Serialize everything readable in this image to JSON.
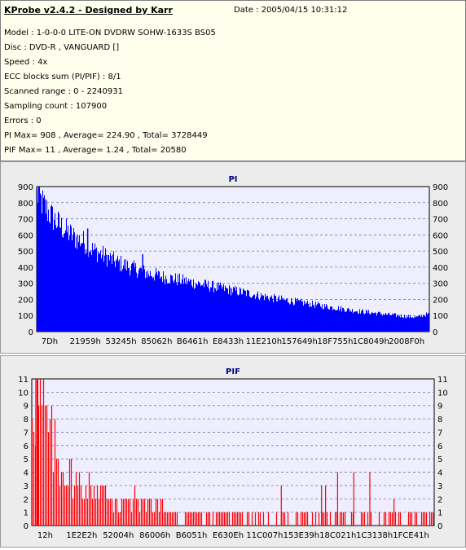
{
  "header": {
    "title": "KProbe v2.4.2 - Designed by Karr",
    "date": "Date : 2005/04/15 10:31:12",
    "lines": [
      "Model : 1-0-0-0 LITE-ON DVDRW SOHW-1633S BS05",
      "Disc : DVD-R , VANGUARD []",
      "Speed : 4x",
      "ECC blocks sum (PI/PIF) : 8/1",
      "Scanned range : 0 - 2240931",
      "Sampling count : 107900",
      "Errors : 0",
      "PI Max= 908 , Average= 224.90 , Total= 3728449",
      "PIF Max= 11 , Average= 1.24 , Total= 20580"
    ]
  },
  "colors": {
    "pi": "#0000ff",
    "pif": "#ff0000",
    "title": "#000080",
    "plot_bg": "#eeeeff"
  },
  "chart_data": [
    {
      "type": "area",
      "title": "PI",
      "ylim": [
        0,
        900
      ],
      "yticks": [
        0,
        100,
        200,
        300,
        400,
        500,
        600,
        700,
        800,
        900
      ],
      "xtick_labels": [
        "7Dh",
        "21959h",
        "53245h",
        "85062h",
        "B6461h",
        "E8433h",
        "11E210h",
        "157649h",
        "18F755h",
        "1C8049h",
        "2008F0h"
      ],
      "grid": true,
      "right_axis": true,
      "envelope": [
        [
          0,
          900
        ],
        [
          0.01,
          860
        ],
        [
          0.02,
          820
        ],
        [
          0.03,
          780
        ],
        [
          0.05,
          720
        ],
        [
          0.07,
          670
        ],
        [
          0.1,
          610
        ],
        [
          0.12,
          590
        ],
        [
          0.14,
          540
        ],
        [
          0.17,
          500
        ],
        [
          0.2,
          460
        ],
        [
          0.24,
          420
        ],
        [
          0.28,
          385
        ],
        [
          0.32,
          360
        ],
        [
          0.36,
          340
        ],
        [
          0.4,
          320
        ],
        [
          0.45,
          295
        ],
        [
          0.5,
          270
        ],
        [
          0.55,
          245
        ],
        [
          0.6,
          220
        ],
        [
          0.65,
          200
        ],
        [
          0.7,
          180
        ],
        [
          0.75,
          160
        ],
        [
          0.8,
          140
        ],
        [
          0.85,
          125
        ],
        [
          0.9,
          110
        ],
        [
          0.94,
          100
        ],
        [
          0.97,
          95
        ],
        [
          0.985,
          110
        ],
        [
          1.0,
          115
        ]
      ],
      "spikes": [
        [
          0.13,
          640
        ],
        [
          0.005,
          908
        ],
        [
          0.27,
          480
        ]
      ]
    },
    {
      "type": "bar",
      "title": "PIF",
      "ylim": [
        0,
        11
      ],
      "yticks": [
        0,
        1,
        2,
        3,
        4,
        5,
        6,
        7,
        8,
        9,
        10,
        11
      ],
      "xtick_labels": [
        "12h",
        "1E2E2h",
        "52004h",
        "86006h",
        "B6051h",
        "E630Eh",
        "11C007h",
        "153E39h",
        "18C021h",
        "1C3138h",
        "1FCE41h"
      ],
      "grid": true,
      "right_axis": true,
      "envelope": [
        [
          0,
          11
        ],
        [
          0.02,
          10
        ],
        [
          0.04,
          8
        ],
        [
          0.06,
          6
        ],
        [
          0.08,
          5
        ],
        [
          0.1,
          4
        ],
        [
          0.13,
          3
        ],
        [
          0.16,
          3
        ],
        [
          0.2,
          2
        ],
        [
          0.25,
          2
        ],
        [
          0.3,
          2
        ],
        [
          0.35,
          1
        ],
        [
          0.45,
          1
        ],
        [
          0.55,
          1
        ],
        [
          0.65,
          1
        ],
        [
          0.75,
          1
        ],
        [
          0.85,
          1
        ],
        [
          1.0,
          1
        ]
      ],
      "spikes": [
        [
          0.01,
          11
        ],
        [
          0.015,
          11
        ],
        [
          0.62,
          3
        ],
        [
          0.72,
          3
        ],
        [
          0.73,
          3
        ],
        [
          0.76,
          4
        ],
        [
          0.8,
          4
        ],
        [
          0.84,
          4
        ],
        [
          0.9,
          2
        ]
      ]
    }
  ]
}
